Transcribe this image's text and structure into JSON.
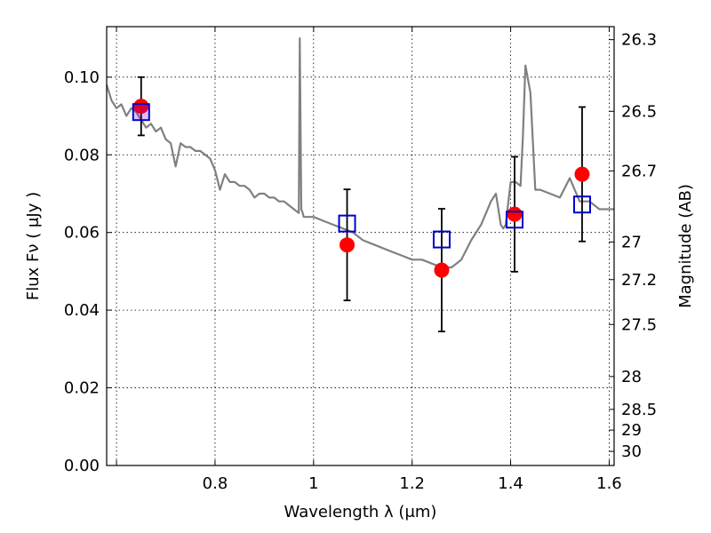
{
  "chart_data": {
    "type": "scatter",
    "title": "",
    "xlabel": "Wavelength  λ (μm)",
    "ylabel": "Flux  Fν  ( μJy )",
    "ylabel_right": "Magnitude (AB)",
    "xlim": [
      0.58,
      1.61
    ],
    "ylim": [
      0.0,
      0.113
    ],
    "grid": true,
    "x_ticks": [
      {
        "value": 0.6,
        "label": ""
      },
      {
        "value": 0.8,
        "label": "0.8"
      },
      {
        "value": 1.0,
        "label": "1"
      },
      {
        "value": 1.2,
        "label": "1.2"
      },
      {
        "value": 1.4,
        "label": "1.4"
      },
      {
        "value": 1.6,
        "label": "1.6"
      }
    ],
    "y_ticks": [
      {
        "value": 0.0,
        "label": "0.00"
      },
      {
        "value": 0.02,
        "label": "0.02"
      },
      {
        "value": 0.04,
        "label": "0.04"
      },
      {
        "value": 0.06,
        "label": "0.06"
      },
      {
        "value": 0.08,
        "label": "0.08"
      },
      {
        "value": 0.1,
        "label": "0.10"
      }
    ],
    "right_ticks": [
      {
        "label": "26.3",
        "value": 26.3
      },
      {
        "label": "26.5",
        "value": 26.5
      },
      {
        "label": "26.7",
        "value": 26.7
      },
      {
        "label": "27",
        "value": 27.0
      },
      {
        "label": "27.2",
        "value": 27.2
      },
      {
        "label": "27.5",
        "value": 27.5
      },
      {
        "label": "28",
        "value": 28.0
      },
      {
        "label": "28.5",
        "value": 28.5
      },
      {
        "label": "29",
        "value": 29.0
      },
      {
        "label": "30",
        "value": 30.0
      }
    ],
    "series": [
      {
        "kind": "line",
        "color": "#808080",
        "x": [
          0.58,
          0.59,
          0.6,
          0.61,
          0.62,
          0.63,
          0.64,
          0.65,
          0.66,
          0.67,
          0.68,
          0.69,
          0.7,
          0.71,
          0.72,
          0.73,
          0.74,
          0.75,
          0.76,
          0.77,
          0.78,
          0.79,
          0.8,
          0.81,
          0.82,
          0.83,
          0.84,
          0.85,
          0.86,
          0.87,
          0.88,
          0.89,
          0.9,
          0.91,
          0.92,
          0.93,
          0.94,
          0.95,
          0.96,
          0.97,
          0.972,
          0.975,
          0.978,
          0.98,
          0.99,
          1.0,
          1.02,
          1.04,
          1.06,
          1.08,
          1.1,
          1.12,
          1.14,
          1.16,
          1.18,
          1.2,
          1.22,
          1.24,
          1.26,
          1.28,
          1.29,
          1.3,
          1.32,
          1.34,
          1.35,
          1.36,
          1.37,
          1.38,
          1.385,
          1.39,
          1.4,
          1.41,
          1.42,
          1.425,
          1.43,
          1.44,
          1.45,
          1.46,
          1.48,
          1.5,
          1.52,
          1.54,
          1.56,
          1.58,
          1.6,
          1.61
        ],
        "y": [
          0.098,
          0.094,
          0.092,
          0.093,
          0.09,
          0.092,
          0.091,
          0.089,
          0.087,
          0.088,
          0.086,
          0.087,
          0.084,
          0.083,
          0.077,
          0.083,
          0.082,
          0.082,
          0.081,
          0.081,
          0.08,
          0.079,
          0.076,
          0.071,
          0.075,
          0.073,
          0.073,
          0.072,
          0.072,
          0.071,
          0.069,
          0.07,
          0.07,
          0.069,
          0.069,
          0.068,
          0.068,
          0.067,
          0.066,
          0.065,
          0.11,
          0.066,
          0.065,
          0.064,
          0.064,
          0.064,
          0.063,
          0.062,
          0.061,
          0.06,
          0.058,
          0.057,
          0.056,
          0.055,
          0.054,
          0.053,
          0.053,
          0.052,
          0.051,
          0.051,
          0.052,
          0.053,
          0.058,
          0.062,
          0.065,
          0.068,
          0.07,
          0.062,
          0.061,
          0.062,
          0.073,
          0.073,
          0.072,
          0.085,
          0.103,
          0.096,
          0.071,
          0.071,
          0.07,
          0.069,
          0.074,
          0.068,
          0.068,
          0.066,
          0.066,
          0.066
        ]
      },
      {
        "kind": "observed",
        "marker": "circle",
        "color": "#ff0000",
        "x": [
          0.65,
          1.068,
          1.26,
          1.408,
          1.545
        ],
        "y": [
          0.0925,
          0.0568,
          0.0503,
          0.0647,
          0.075
        ],
        "err": [
          0.0075,
          0.0143,
          0.0158,
          0.0148,
          0.0173
        ]
      },
      {
        "kind": "model",
        "marker": "square",
        "color": "#0000cc",
        "x": [
          0.65,
          1.068,
          1.26,
          1.408,
          1.545
        ],
        "y": [
          0.091,
          0.0623,
          0.0582,
          0.0633,
          0.0672
        ]
      }
    ]
  }
}
